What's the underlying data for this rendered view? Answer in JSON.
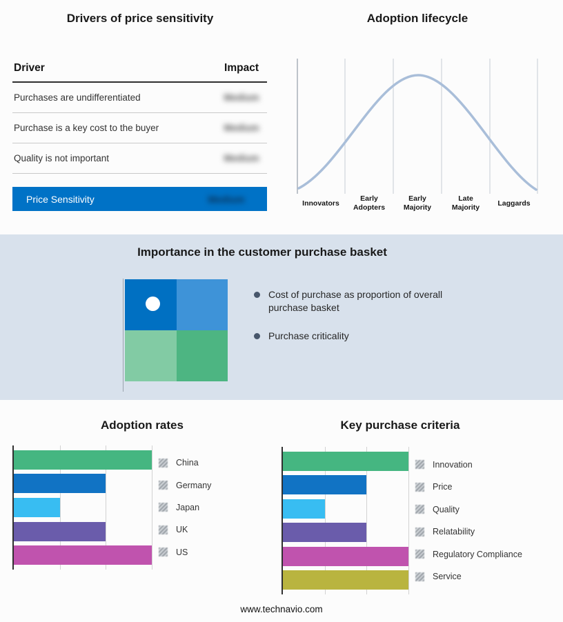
{
  "drivers_table": {
    "title": "Drivers of price sensitivity",
    "columns": [
      "Driver",
      "Impact"
    ],
    "rows": [
      {
        "driver": "Purchases are undifferentiated",
        "impact": "Medium"
      },
      {
        "driver": "Purchase is a key cost to the buyer",
        "impact": "Medium"
      },
      {
        "driver": "Quality is not important",
        "impact": "Medium"
      }
    ],
    "summary": {
      "label": "Price Sensitivity",
      "impact": "Medium"
    },
    "accent_color": "#0072c6",
    "impact_values_blurred": true
  },
  "purchase_basket": {
    "title": "Importance in the customer purchase basket",
    "bullets": [
      "Cost of purchase as proportion of overall purchase basket",
      "Purchase criticality"
    ],
    "quadrant_colors": [
      "#0070c2",
      "#3e93d8",
      "#82cba4",
      "#4db582"
    ],
    "band_color": "#d8e1ec"
  },
  "footer": {
    "website": "www.technavio.com"
  },
  "chart_data": [
    {
      "id": "adoption_lifecycle",
      "type": "line",
      "title": "Adoption lifecycle",
      "categories": [
        "Innovators",
        "Early Adopters",
        "Early Majority",
        "Late Majority",
        "Laggards"
      ],
      "shape": "bell curve rising from Innovators, peaking at Early Majority, falling to Laggards",
      "line_color": "#a9bed9",
      "grid": true,
      "y_axis_labels": "none"
    },
    {
      "id": "adoption_rates",
      "type": "bar",
      "orientation": "horizontal",
      "title": "Adoption rates",
      "categories": [
        "China",
        "Germany",
        "Japan",
        "UK",
        "US"
      ],
      "values": [
        3,
        2,
        1,
        2,
        3
      ],
      "xlim": [
        0,
        3
      ],
      "colors": [
        "#45b681",
        "#1173c4",
        "#38bdf2",
        "#6a5cab",
        "#c053ae"
      ],
      "grid": true,
      "legend_position": "right",
      "x_axis_labels": "none"
    },
    {
      "id": "key_purchase_criteria",
      "type": "bar",
      "orientation": "horizontal",
      "title": "Key purchase criteria",
      "categories": [
        "Innovation",
        "Price",
        "Quality",
        "Relatability",
        "Regulatory Compliance",
        "Service"
      ],
      "values": [
        3,
        2,
        1,
        2,
        3,
        3
      ],
      "xlim": [
        0,
        3
      ],
      "colors": [
        "#45b681",
        "#1173c4",
        "#38bdf2",
        "#6a5cab",
        "#c053ae",
        "#b9b43f"
      ],
      "grid": true,
      "legend_position": "right",
      "x_axis_labels": "none"
    }
  ]
}
